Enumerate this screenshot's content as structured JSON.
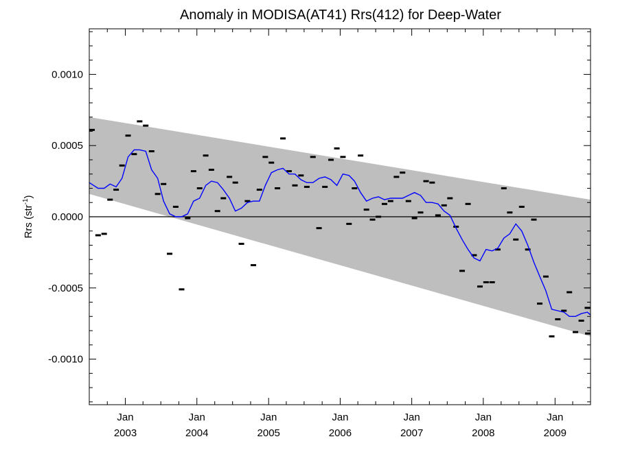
{
  "chart_data": {
    "type": "line",
    "title": "Anomaly in MODISA(AT41) Rrs(412) for Deep-Water",
    "ylabel_main": "Rrs (str",
    "ylabel_sup": "-1",
    "ylabel_close": ")",
    "xlim": [
      "2002-07-01",
      "2009-07-01"
    ],
    "ylim": [
      -0.00132,
      0.00132
    ],
    "y_ticks": [
      -0.001,
      -0.0005,
      0.0,
      0.0005,
      0.001
    ],
    "y_tick_labels": [
      "-0.0010",
      "-0.0005",
      "0.0000",
      "0.0005",
      "0.0010"
    ],
    "x_ticks": [
      {
        "date": "2003-01-01",
        "month": "Jan",
        "year": "2003"
      },
      {
        "date": "2004-01-01",
        "month": "Jan",
        "year": "2004"
      },
      {
        "date": "2005-01-01",
        "month": "Jan",
        "year": "2005"
      },
      {
        "date": "2006-01-01",
        "month": "Jan",
        "year": "2006"
      },
      {
        "date": "2007-01-01",
        "month": "Jan",
        "year": "2007"
      },
      {
        "date": "2008-01-01",
        "month": "Jan",
        "year": "2008"
      },
      {
        "date": "2009-01-01",
        "month": "Jan",
        "year": "2009"
      }
    ],
    "zero_line": 0.0,
    "band": {
      "start": {
        "upper": 0.0007,
        "lower": 0.00016
      },
      "end": {
        "upper": 0.00012,
        "lower": -0.00084
      }
    },
    "colors": {
      "band": "#bebebe",
      "line": "#0000ff",
      "points": "#000000",
      "zero": "#000000"
    },
    "points": [
      [
        "2002-07-15",
        0.00061
      ],
      [
        "2002-08-15",
        -0.00013
      ],
      [
        "2002-09-15",
        -0.00012
      ],
      [
        "2002-10-15",
        0.00012
      ],
      [
        "2002-11-15",
        0.00019
      ],
      [
        "2002-12-15",
        0.00036
      ],
      [
        "2003-01-15",
        0.00057
      ],
      [
        "2003-02-15",
        0.00044
      ],
      [
        "2003-03-15",
        0.00067
      ],
      [
        "2003-04-15",
        0.00064
      ],
      [
        "2003-05-15",
        0.00046
      ],
      [
        "2003-06-15",
        0.00016
      ],
      [
        "2003-07-15",
        0.00023
      ],
      [
        "2003-08-15",
        -0.00026
      ],
      [
        "2003-09-15",
        7e-05
      ],
      [
        "2003-10-15",
        -0.00051
      ],
      [
        "2003-11-15",
        -1e-05
      ],
      [
        "2003-12-15",
        0.00032
      ],
      [
        "2004-01-15",
        0.0002
      ],
      [
        "2004-02-15",
        0.00043
      ],
      [
        "2004-03-15",
        0.00033
      ],
      [
        "2004-04-15",
        4e-05
      ],
      [
        "2004-05-15",
        0.00013
      ],
      [
        "2004-06-15",
        0.00028
      ],
      [
        "2004-07-15",
        0.00024
      ],
      [
        "2004-08-15",
        -0.00019
      ],
      [
        "2004-09-15",
        0.00011
      ],
      [
        "2004-10-15",
        -0.00034
      ],
      [
        "2004-11-15",
        0.00019
      ],
      [
        "2004-12-15",
        0.00042
      ],
      [
        "2005-01-15",
        0.00038
      ],
      [
        "2005-02-15",
        0.0002
      ],
      [
        "2005-03-15",
        0.00055
      ],
      [
        "2005-04-15",
        0.00032
      ],
      [
        "2005-05-15",
        0.00022
      ],
      [
        "2005-06-15",
        0.00029
      ],
      [
        "2005-07-15",
        0.00021
      ],
      [
        "2005-08-15",
        0.00042
      ],
      [
        "2005-09-15",
        -8e-05
      ],
      [
        "2005-10-15",
        0.00021
      ],
      [
        "2005-11-15",
        0.0004
      ],
      [
        "2005-12-15",
        0.00048
      ],
      [
        "2006-01-15",
        0.00042
      ],
      [
        "2006-02-15",
        -5e-05
      ],
      [
        "2006-03-15",
        0.0002
      ],
      [
        "2006-04-15",
        0.00043
      ],
      [
        "2006-05-15",
        5e-05
      ],
      [
        "2006-06-15",
        -2e-05
      ],
      [
        "2006-07-15",
        0.0
      ],
      [
        "2006-08-15",
        9e-05
      ],
      [
        "2006-09-15",
        0.00011
      ],
      [
        "2006-10-15",
        0.00028
      ],
      [
        "2006-11-15",
        0.00031
      ],
      [
        "2006-12-15",
        0.00011
      ],
      [
        "2007-01-15",
        -1e-05
      ],
      [
        "2007-02-15",
        3e-05
      ],
      [
        "2007-03-15",
        0.00025
      ],
      [
        "2007-04-15",
        0.00024
      ],
      [
        "2007-05-15",
        1e-05
      ],
      [
        "2007-06-15",
        8e-05
      ],
      [
        "2007-07-15",
        0.00013
      ],
      [
        "2007-08-15",
        -7e-05
      ],
      [
        "2007-09-15",
        -0.00038
      ],
      [
        "2007-10-15",
        9e-05
      ],
      [
        "2007-11-15",
        -0.00027
      ],
      [
        "2007-12-15",
        -0.00049
      ],
      [
        "2008-01-15",
        -0.00046
      ],
      [
        "2008-02-15",
        -0.00046
      ],
      [
        "2008-03-15",
        -0.00023
      ],
      [
        "2008-04-15",
        0.0002
      ],
      [
        "2008-05-15",
        3e-05
      ],
      [
        "2008-06-15",
        -0.00016
      ],
      [
        "2008-07-15",
        7e-05
      ],
      [
        "2008-08-15",
        -0.00023
      ],
      [
        "2008-09-15",
        -2e-05
      ],
      [
        "2008-10-15",
        -0.00061
      ],
      [
        "2008-11-15",
        -0.00042
      ],
      [
        "2008-12-15",
        -0.00084
      ],
      [
        "2009-01-15",
        -0.00072
      ],
      [
        "2009-02-15",
        -0.00066
      ],
      [
        "2009-03-15",
        -0.00053
      ],
      [
        "2009-04-15",
        -0.00081
      ],
      [
        "2009-05-15",
        -0.00073
      ],
      [
        "2009-06-15",
        -0.00064
      ],
      [
        "2009-07-01",
        -0.00082
      ]
    ],
    "smoothed": [
      [
        "2002-07-01",
        0.00024
      ],
      [
        "2002-08-15",
        0.0002
      ],
      [
        "2002-09-15",
        0.0002
      ],
      [
        "2002-10-15",
        0.00023
      ],
      [
        "2002-11-15",
        0.00021
      ],
      [
        "2002-12-15",
        0.00027
      ],
      [
        "2003-01-15",
        0.00042
      ],
      [
        "2003-02-15",
        0.00047
      ],
      [
        "2003-03-15",
        0.00047
      ],
      [
        "2003-04-15",
        0.00046
      ],
      [
        "2003-05-15",
        0.00033
      ],
      [
        "2003-06-15",
        0.00027
      ],
      [
        "2003-07-15",
        0.00011
      ],
      [
        "2003-08-15",
        2e-05
      ],
      [
        "2003-09-15",
        0.0
      ],
      [
        "2003-10-15",
        0.0
      ],
      [
        "2003-11-15",
        2e-05
      ],
      [
        "2003-12-15",
        0.00011
      ],
      [
        "2004-01-15",
        0.00013
      ],
      [
        "2004-02-15",
        0.00022
      ],
      [
        "2004-03-15",
        0.00025
      ],
      [
        "2004-04-15",
        0.00024
      ],
      [
        "2004-05-15",
        0.00019
      ],
      [
        "2004-06-15",
        0.00013
      ],
      [
        "2004-07-15",
        4e-05
      ],
      [
        "2004-08-15",
        6e-05
      ],
      [
        "2004-09-15",
        0.0001
      ],
      [
        "2004-10-15",
        0.00011
      ],
      [
        "2004-11-15",
        0.00011
      ],
      [
        "2004-12-15",
        0.00022
      ],
      [
        "2005-01-15",
        0.00031
      ],
      [
        "2005-02-15",
        0.00033
      ],
      [
        "2005-03-15",
        0.00034
      ],
      [
        "2005-04-15",
        0.0003
      ],
      [
        "2005-05-15",
        0.0003
      ],
      [
        "2005-06-15",
        0.00026
      ],
      [
        "2005-07-15",
        0.00024
      ],
      [
        "2005-08-15",
        0.00024
      ],
      [
        "2005-09-15",
        0.00027
      ],
      [
        "2005-10-15",
        0.00028
      ],
      [
        "2005-11-15",
        0.00026
      ],
      [
        "2005-12-15",
        0.00022
      ],
      [
        "2006-01-15",
        0.0003
      ],
      [
        "2006-02-15",
        0.00029
      ],
      [
        "2006-03-15",
        0.00025
      ],
      [
        "2006-04-15",
        0.00017
      ],
      [
        "2006-05-15",
        0.00011
      ],
      [
        "2006-06-15",
        0.00013
      ],
      [
        "2006-07-15",
        0.00014
      ],
      [
        "2006-08-15",
        0.00012
      ],
      [
        "2006-09-15",
        0.00013
      ],
      [
        "2006-10-15",
        0.00013
      ],
      [
        "2006-11-15",
        0.00013
      ],
      [
        "2006-12-15",
        0.00015
      ],
      [
        "2007-01-15",
        0.00017
      ],
      [
        "2007-02-15",
        0.00015
      ],
      [
        "2007-03-15",
        0.0001
      ],
      [
        "2007-04-15",
        0.0001
      ],
      [
        "2007-05-15",
        9e-05
      ],
      [
        "2007-06-15",
        4e-05
      ],
      [
        "2007-07-15",
        1e-05
      ],
      [
        "2007-08-15",
        -8e-05
      ],
      [
        "2007-09-15",
        -0.00016
      ],
      [
        "2007-10-15",
        -0.00023
      ],
      [
        "2007-11-15",
        -0.00029
      ],
      [
        "2007-12-15",
        -0.00031
      ],
      [
        "2008-01-15",
        -0.00023
      ],
      [
        "2008-02-15",
        -0.00024
      ],
      [
        "2008-03-15",
        -0.00022
      ],
      [
        "2008-04-15",
        -0.00015
      ],
      [
        "2008-05-15",
        -0.00012
      ],
      [
        "2008-06-15",
        -5e-05
      ],
      [
        "2008-07-15",
        -0.0001
      ],
      [
        "2008-08-15",
        -0.0002
      ],
      [
        "2008-09-15",
        -0.00032
      ],
      [
        "2008-10-15",
        -0.00042
      ],
      [
        "2008-11-15",
        -0.00052
      ],
      [
        "2008-12-15",
        -0.00065
      ],
      [
        "2009-01-15",
        -0.00066
      ],
      [
        "2009-02-15",
        -0.00067
      ],
      [
        "2009-03-15",
        -0.0007
      ],
      [
        "2009-04-15",
        -0.0007
      ],
      [
        "2009-05-15",
        -0.00068
      ],
      [
        "2009-06-15",
        -0.00067
      ],
      [
        "2009-07-01",
        -0.00069
      ]
    ]
  }
}
